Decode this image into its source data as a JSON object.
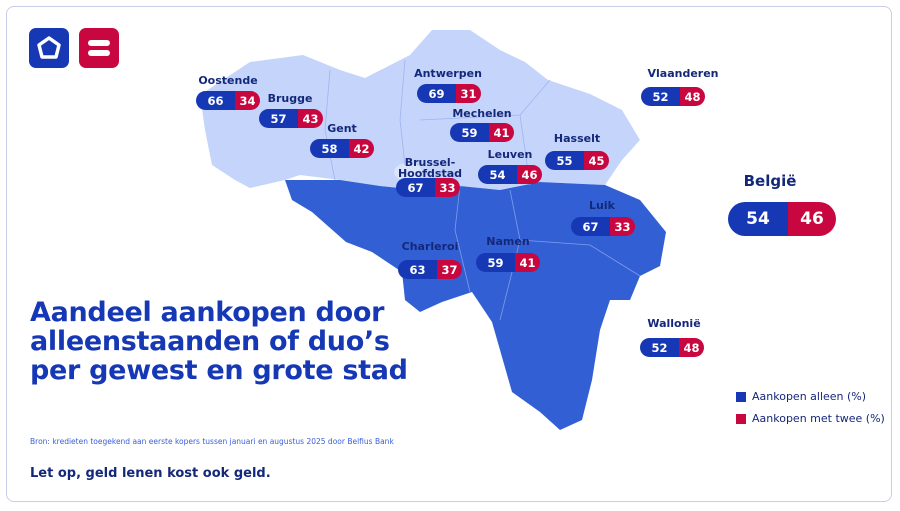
{
  "title": [
    "Aandeel aankopen door",
    "alleenstaanden of duo’s",
    "per gewest en grote stad"
  ],
  "source": "Bron: kredieten toegekend aan eerste kopers tussen januari en augustus 2025 door Belfius Bank",
  "warning": "Let op, geld lenen kost ook geld.",
  "legend": {
    "alone": "Aankopen alleen (%)",
    "duo": "Aankopen met twee (%)"
  },
  "colors": {
    "alone": "#1638b5",
    "duo": "#c8063f",
    "flanders": "#c4d4fb",
    "wallonia": "#3260d4"
  },
  "icons": {
    "logo1": "house-pentagon-icon",
    "logo2": "equals-icon",
    "vlaanderen": "lion-icon",
    "wallonie": "rooster-icon",
    "brussel": "iris-icon"
  },
  "cities": [
    {
      "name": "Oostende",
      "alone": 66,
      "duo": 34
    },
    {
      "name": "Brugge",
      "alone": 57,
      "duo": 43
    },
    {
      "name": "Gent",
      "alone": 58,
      "duo": 42
    },
    {
      "name": "Antwerpen",
      "alone": 69,
      "duo": 31
    },
    {
      "name": "Mechelen",
      "alone": 59,
      "duo": 41
    },
    {
      "name": "Hasselt",
      "alone": 55,
      "duo": 45
    },
    {
      "name": "Leuven",
      "alone": 54,
      "duo": 46
    },
    {
      "name": "Brussel-Hoofdstad",
      "alone": 67,
      "duo": 33
    },
    {
      "name": "Luik",
      "alone": 67,
      "duo": 33
    },
    {
      "name": "Namen",
      "alone": 59,
      "duo": 41
    },
    {
      "name": "Charleroi",
      "alone": 63,
      "duo": 37
    }
  ],
  "regions": [
    {
      "name": "Vlaanderen",
      "alone": 52,
      "duo": 48
    },
    {
      "name": "Wallonië",
      "alone": 52,
      "duo": 48
    }
  ],
  "country": {
    "name": "België",
    "alone": 54,
    "duo": 46
  }
}
